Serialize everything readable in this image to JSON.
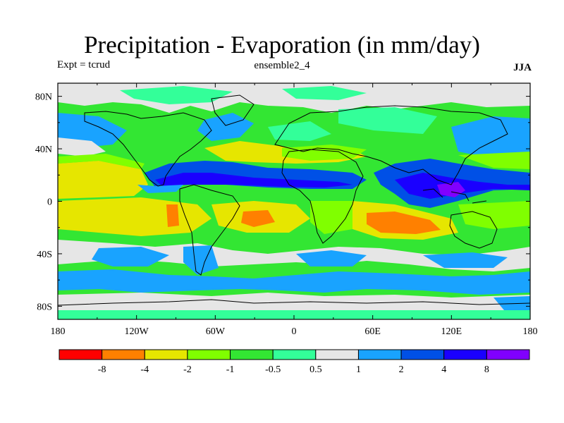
{
  "title": "Precipitation - Evaporation (in mm/day)",
  "subtitle_left": "Expt = tcrud",
  "subtitle_center": "ensemble2_4",
  "subtitle_right": "JJA",
  "map": {
    "x_ticks": [
      "180",
      "120W",
      "60W",
      "0",
      "60E",
      "120E",
      "180"
    ],
    "y_ticks": [
      "80N",
      "40N",
      "0",
      "40S",
      "80S"
    ],
    "lon_range": [
      -180,
      180
    ],
    "lat_range": [
      -90,
      90
    ]
  },
  "colorbar": {
    "colors": [
      "#ff0000",
      "#ff8000",
      "#e6e600",
      "#80ff00",
      "#33e633",
      "#33ff99",
      "#e6e6e6",
      "#19a3ff",
      "#0050e6",
      "#1a00ff",
      "#8000ff"
    ],
    "labels": [
      "-8",
      "-4",
      "-2",
      "-1",
      "-0.5",
      "0.5",
      "1",
      "2",
      "4",
      "8"
    ]
  },
  "colors": {
    "red": "#ff0000",
    "orange": "#ff8000",
    "yellow": "#e6e600",
    "lime": "#80ff00",
    "green": "#33e633",
    "mint": "#33ff99",
    "gray": "#e6e6e6",
    "lightblue": "#19a3ff",
    "blue": "#0050e6",
    "darkblue": "#1a00ff",
    "purple": "#8000ff"
  }
}
